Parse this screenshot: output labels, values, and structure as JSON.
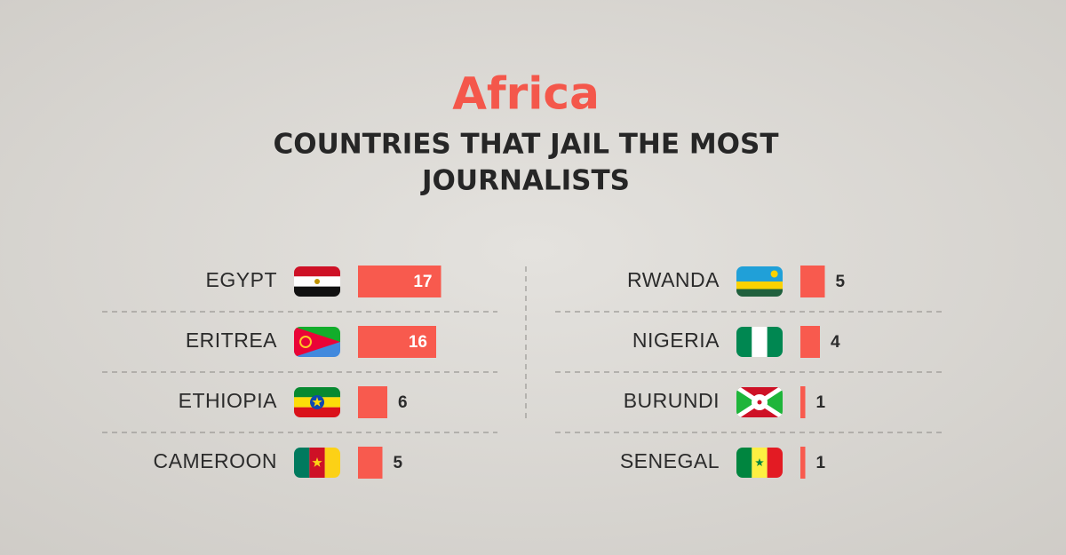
{
  "chart_data": {
    "type": "bar",
    "orientation": "horizontal",
    "title": "Africa",
    "subtitle": [
      "COUNTRIES THAT JAIL THE MOST",
      "JOURNALISTS"
    ],
    "categories": [
      "EGYPT",
      "ERITREA",
      "ETHIOPIA",
      "CAMEROON",
      "RWANDA",
      "NIGERIA",
      "BURUNDI",
      "SENEGAL"
    ],
    "values": [
      17,
      16,
      6,
      5,
      5,
      4,
      1,
      1
    ],
    "color": "#f85a4e"
  }
}
